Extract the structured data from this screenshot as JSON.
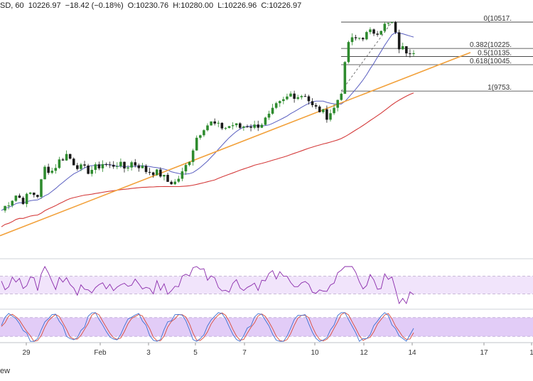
{
  "header": {
    "symbol": "SD, 60",
    "last": "10226.97",
    "change": "−18.42 (−0.18%)",
    "open": "O:10230.76",
    "high": "H:10280.00",
    "low": "L:10226.96",
    "close": "C:10226.97"
  },
  "footer": {
    "text": "ew"
  },
  "colors": {
    "bull": "#2e8b2e",
    "bear": "#1a1a1a",
    "ma_fast": "#5a5fc0",
    "ma_slow": "#d43b3b",
    "trendline": "#f2a13b",
    "fib": "#333333",
    "rsi_line": "#8a2bab",
    "rsi_band": "#f1e4fb",
    "stoch_band": "#e2ccf7",
    "stoch_k": "#3b6fd1",
    "stoch_d": "#d84a3a"
  },
  "chart_data": {
    "type": "candlestick",
    "x_tick_labels": [
      "29",
      "Feb",
      "3",
      "5",
      "7",
      "10",
      "12",
      "14",
      "17",
      "1"
    ],
    "fib_levels": [
      {
        "label": "0(10517.",
        "ratio": 0
      },
      {
        "label": "0.382(10225.",
        "ratio": 0.382
      },
      {
        "label": "0.5(10135.",
        "ratio": 0.5
      },
      {
        "label": "0.618(10045.",
        "ratio": 0.618
      },
      {
        "label": "1(9753.",
        "ratio": 1
      }
    ],
    "price_path": [
      [
        0,
        8430
      ],
      [
        2,
        8520
      ],
      [
        4,
        8600
      ],
      [
        6,
        8540
      ],
      [
        8,
        8620
      ],
      [
        10,
        8600
      ],
      [
        12,
        8900
      ],
      [
        14,
        8870
      ],
      [
        16,
        8980
      ],
      [
        18,
        9050
      ],
      [
        20,
        8960
      ],
      [
        22,
        8900
      ],
      [
        24,
        8870
      ],
      [
        26,
        8900
      ],
      [
        28,
        8950
      ],
      [
        30,
        8920
      ],
      [
        32,
        8950
      ],
      [
        34,
        8900
      ],
      [
        36,
        8960
      ],
      [
        38,
        8930
      ],
      [
        40,
        8870
      ],
      [
        42,
        8860
      ],
      [
        44,
        8830
      ],
      [
        46,
        8750
      ],
      [
        48,
        8740
      ],
      [
        50,
        8840
      ],
      [
        52,
        9000
      ],
      [
        54,
        9240
      ],
      [
        56,
        9360
      ],
      [
        58,
        9400
      ],
      [
        60,
        9360
      ],
      [
        62,
        9350
      ],
      [
        64,
        9380
      ],
      [
        66,
        9350
      ],
      [
        68,
        9380
      ],
      [
        70,
        9360
      ],
      [
        72,
        9400
      ],
      [
        74,
        9470
      ],
      [
        76,
        9580
      ],
      [
        78,
        9640
      ],
      [
        80,
        9720
      ],
      [
        82,
        9700
      ],
      [
        84,
        9720
      ],
      [
        86,
        9580
      ],
      [
        88,
        9540
      ],
      [
        90,
        9480
      ],
      [
        92,
        9560
      ],
      [
        94,
        9760
      ],
      [
        96,
        10300
      ],
      [
        98,
        10330
      ],
      [
        100,
        10360
      ],
      [
        102,
        10400
      ],
      [
        104,
        10420
      ],
      [
        106,
        10480
      ],
      [
        108,
        10500
      ],
      [
        110,
        10240
      ],
      [
        112,
        10200
      ],
      [
        114,
        10210
      ]
    ],
    "rsi_bounds": [
      0,
      100
    ],
    "rsi_bands": [
      30,
      70
    ],
    "stoch_bounds": [
      0,
      100
    ],
    "stoch_bands": [
      20,
      80
    ]
  }
}
